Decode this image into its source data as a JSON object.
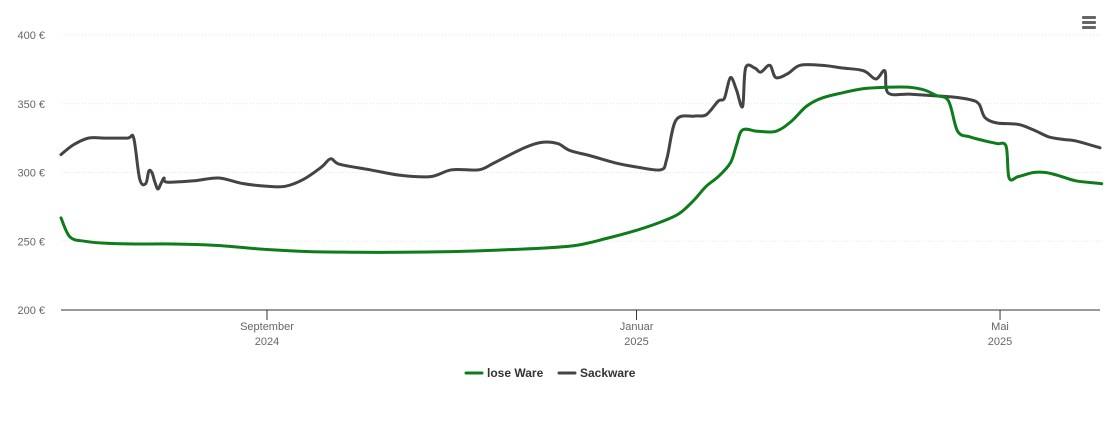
{
  "menu": {
    "icon": "hamburger-menu-icon"
  },
  "chart_data": {
    "type": "line",
    "title": "",
    "xlabel": "",
    "ylabel": "",
    "ylim": [
      200,
      400
    ],
    "y_ticks": [
      {
        "value": 200,
        "label": "200 €"
      },
      {
        "value": 250,
        "label": "250 €"
      },
      {
        "value": 300,
        "label": "300 €"
      },
      {
        "value": 350,
        "label": "350 €"
      },
      {
        "value": 400,
        "label": "400 €"
      }
    ],
    "x_ticks": [
      {
        "date": "2024-09-01",
        "label": "September",
        "sublabel": "2024"
      },
      {
        "date": "2025-01-01",
        "label": "Januar",
        "sublabel": "2025"
      },
      {
        "date": "2025-05-01",
        "label": "Mai",
        "sublabel": "2025"
      }
    ],
    "xlim": [
      "2024-06-25",
      "2025-06-03"
    ],
    "grid": true,
    "legend_position": "bottom-center",
    "series": [
      {
        "name": "lose Ware",
        "color": "#0e7c1b",
        "points": [
          [
            "2024-06-25",
            267
          ],
          [
            "2024-06-28",
            253
          ],
          [
            "2024-07-03",
            250
          ],
          [
            "2024-07-10",
            248.5
          ],
          [
            "2024-07-20",
            248
          ],
          [
            "2024-08-01",
            248
          ],
          [
            "2024-08-15",
            247
          ],
          [
            "2024-09-01",
            244
          ],
          [
            "2024-09-15",
            242.5
          ],
          [
            "2024-10-01",
            242
          ],
          [
            "2024-10-15",
            242
          ],
          [
            "2024-11-01",
            242.5
          ],
          [
            "2024-11-15",
            243.5
          ],
          [
            "2024-12-01",
            245
          ],
          [
            "2024-12-12",
            247
          ],
          [
            "2024-12-22",
            252
          ],
          [
            "2025-01-01",
            258
          ],
          [
            "2025-01-09",
            264
          ],
          [
            "2025-01-15",
            270
          ],
          [
            "2025-01-20",
            280
          ],
          [
            "2025-01-24",
            290
          ],
          [
            "2025-01-28",
            297
          ],
          [
            "2025-02-01",
            307
          ],
          [
            "2025-02-03",
            320
          ],
          [
            "2025-02-05",
            331
          ],
          [
            "2025-02-10",
            330
          ],
          [
            "2025-02-16",
            330
          ],
          [
            "2025-02-21",
            337
          ],
          [
            "2025-02-26",
            348
          ],
          [
            "2025-03-03",
            354
          ],
          [
            "2025-03-10",
            358
          ],
          [
            "2025-03-17",
            361
          ],
          [
            "2025-03-25",
            362
          ],
          [
            "2025-04-01",
            362
          ],
          [
            "2025-04-06",
            360
          ],
          [
            "2025-04-10",
            356
          ],
          [
            "2025-04-14",
            352
          ],
          [
            "2025-04-17",
            330
          ],
          [
            "2025-04-21",
            326
          ],
          [
            "2025-04-26",
            323
          ],
          [
            "2025-04-30",
            321
          ],
          [
            "2025-05-03",
            319
          ],
          [
            "2025-05-04",
            296
          ],
          [
            "2025-05-07",
            297
          ],
          [
            "2025-05-12",
            300
          ],
          [
            "2025-05-16",
            300
          ],
          [
            "2025-05-20",
            298
          ],
          [
            "2025-05-26",
            294
          ],
          [
            "2025-06-03",
            292
          ],
          [
            "2025-06-03",
            292
          ]
        ]
      },
      {
        "name": "Sackware",
        "color": "#434348",
        "points": [
          [
            "2024-06-25",
            313
          ],
          [
            "2024-06-29",
            320
          ],
          [
            "2024-07-04",
            325
          ],
          [
            "2024-07-10",
            325
          ],
          [
            "2024-07-17",
            325
          ],
          [
            "2024-07-19",
            325
          ],
          [
            "2024-07-21",
            295
          ],
          [
            "2024-07-23",
            292
          ],
          [
            "2024-07-24",
            301
          ],
          [
            "2024-07-25",
            300
          ],
          [
            "2024-07-26",
            293
          ],
          [
            "2024-07-27",
            288
          ],
          [
            "2024-07-28",
            292
          ],
          [
            "2024-07-29",
            296
          ],
          [
            "2024-07-30",
            293
          ],
          [
            "2024-08-08",
            294
          ],
          [
            "2024-08-16",
            296
          ],
          [
            "2024-08-24",
            292
          ],
          [
            "2024-09-01",
            290
          ],
          [
            "2024-09-07",
            290
          ],
          [
            "2024-09-13",
            295
          ],
          [
            "2024-09-19",
            304
          ],
          [
            "2024-09-22",
            310
          ],
          [
            "2024-09-25",
            306
          ],
          [
            "2024-10-05",
            302
          ],
          [
            "2024-10-15",
            298
          ],
          [
            "2024-10-25",
            297
          ],
          [
            "2024-11-01",
            302
          ],
          [
            "2024-11-10",
            302
          ],
          [
            "2024-11-15",
            307
          ],
          [
            "2024-11-25",
            318
          ],
          [
            "2024-12-01",
            322
          ],
          [
            "2024-12-06",
            321
          ],
          [
            "2024-12-10",
            316
          ],
          [
            "2024-12-17",
            312
          ],
          [
            "2024-12-25",
            307
          ],
          [
            "2025-01-01",
            304
          ],
          [
            "2025-01-09",
            302
          ],
          [
            "2025-01-11",
            310
          ],
          [
            "2025-01-14",
            338
          ],
          [
            "2025-01-20",
            341
          ],
          [
            "2025-01-24",
            342
          ],
          [
            "2025-01-28",
            352
          ],
          [
            "2025-01-30",
            354
          ],
          [
            "2025-02-01",
            369
          ],
          [
            "2025-02-03",
            360
          ],
          [
            "2025-02-05",
            348
          ],
          [
            "2025-02-06",
            376
          ],
          [
            "2025-02-09",
            376
          ],
          [
            "2025-02-11",
            373
          ],
          [
            "2025-02-14",
            378
          ],
          [
            "2025-02-16",
            369
          ],
          [
            "2025-02-20",
            372
          ],
          [
            "2025-02-24",
            378
          ],
          [
            "2025-03-03",
            378
          ],
          [
            "2025-03-10",
            376
          ],
          [
            "2025-03-17",
            374
          ],
          [
            "2025-03-21",
            368
          ],
          [
            "2025-03-24",
            374
          ],
          [
            "2025-03-25",
            358
          ],
          [
            "2025-04-01",
            357
          ],
          [
            "2025-04-08",
            356
          ],
          [
            "2025-04-15",
            355
          ],
          [
            "2025-04-21",
            353
          ],
          [
            "2025-04-24",
            350
          ],
          [
            "2025-04-26",
            340
          ],
          [
            "2025-04-30",
            336
          ],
          [
            "2025-05-07",
            335
          ],
          [
            "2025-05-12",
            331
          ],
          [
            "2025-05-17",
            326
          ],
          [
            "2025-05-22",
            324
          ],
          [
            "2025-05-26",
            323
          ],
          [
            "2025-06-03",
            318
          ]
        ]
      }
    ]
  }
}
